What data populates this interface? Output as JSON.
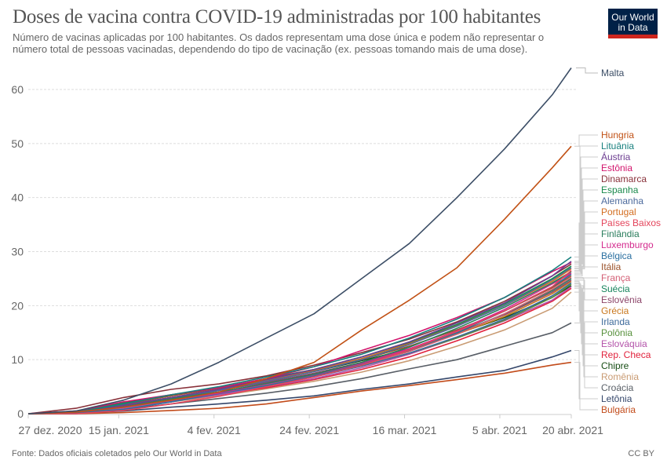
{
  "header": {
    "title": "Doses de vacina contra COVID-19 administradas por 100 habitantes",
    "subtitle": "Número de vacinas aplicadas por 100 habitantes. Os dados representam uma dose única e podem não representar o número total de pessoas vacinadas, dependendo do tipo de vacinação (ex. pessoas tomando mais de uma dose).",
    "logo_line1": "Our World",
    "logo_line2": "in Data"
  },
  "footer": {
    "source": "Fonte: Dados oficiais coletados pelo Our World in Data",
    "license": "CC BY"
  },
  "chart_data": {
    "type": "line",
    "title": "Doses de vacina contra COVID-19 administradas por 100 habitantes",
    "xlabel": "",
    "ylabel": "",
    "ylim": [
      0,
      64
    ],
    "yticks": [
      0,
      10,
      20,
      30,
      40,
      50,
      60
    ],
    "grid": true,
    "x_ticks": [
      {
        "day": 0,
        "label": "27 dez. 2020"
      },
      {
        "day": 19,
        "label": "15 jan. 2021"
      },
      {
        "day": 39,
        "label": "4 fev. 2021"
      },
      {
        "day": 59,
        "label": "24 fev. 2021"
      },
      {
        "day": 79,
        "label": "16 mar. 2021"
      },
      {
        "day": 99,
        "label": "5 abr. 2021"
      },
      {
        "day": 114,
        "label": "20 abr. 2021"
      }
    ],
    "x_unit": "days since 27 dez. 2020",
    "x": [
      0,
      10,
      20,
      30,
      40,
      50,
      60,
      70,
      80,
      90,
      100,
      110,
      114
    ],
    "legend_position": "right",
    "series": [
      {
        "name": "Malta",
        "color": "#3c4e66",
        "values": [
          0,
          0.5,
          2.5,
          5.5,
          9.5,
          14,
          18.5,
          25,
          31.5,
          40,
          49,
          59,
          64
        ]
      },
      {
        "name": "Hungria",
        "color": "#c15115",
        "values": [
          0,
          0.3,
          1.2,
          2.5,
          4,
          6.5,
          9.5,
          15.5,
          21,
          27,
          36,
          45.5,
          49.5
        ]
      },
      {
        "name": "Lituânia",
        "color": "#18807e",
        "values": [
          0,
          0.3,
          1.8,
          3.5,
          5,
          6.8,
          8.7,
          11,
          14,
          17.5,
          21.5,
          26.5,
          29
        ]
      },
      {
        "name": "Áustria",
        "color": "#6d3e91",
        "values": [
          0,
          0.3,
          1.5,
          3,
          4.5,
          6.3,
          8.2,
          10.5,
          13.3,
          16.8,
          20.5,
          25.5,
          28.2
        ]
      },
      {
        "name": "Estônia",
        "color": "#d2146c",
        "values": [
          0,
          0.5,
          2.2,
          3.5,
          4.8,
          6.5,
          8.7,
          11.7,
          14.5,
          17.8,
          21.5,
          26.3,
          28
        ]
      },
      {
        "name": "Dinamarca",
        "color": "#883039",
        "values": [
          0,
          1,
          3,
          4.5,
          5.5,
          7,
          9,
          11.3,
          13.8,
          17,
          20.8,
          25.5,
          27.7
        ]
      },
      {
        "name": "Espanha",
        "color": "#1a8a4c",
        "values": [
          0,
          0.5,
          2,
          3.5,
          4.8,
          6.5,
          8.2,
          10.5,
          13.2,
          16.5,
          20.3,
          25,
          27.3
        ]
      },
      {
        "name": "Alemanha",
        "color": "#4c6a9c",
        "values": [
          0,
          0.3,
          1.5,
          3,
          4.3,
          6,
          7.8,
          10,
          12.8,
          16.2,
          20,
          24.8,
          27
        ]
      },
      {
        "name": "Portugal",
        "color": "#d36d20",
        "values": [
          0,
          0.3,
          1.5,
          3,
          4.5,
          6.2,
          8,
          10.2,
          13,
          16.3,
          20,
          24.5,
          26.8
        ]
      },
      {
        "name": "Países Baixos",
        "color": "#e4445b",
        "values": [
          0,
          0,
          0.6,
          1.8,
          3.2,
          5,
          6.8,
          9,
          11.8,
          15.2,
          19,
          23.5,
          26.5
        ]
      },
      {
        "name": "Finlândia",
        "color": "#2a7d5c",
        "values": [
          0,
          0.3,
          1.3,
          2.8,
          4,
          5.6,
          7.3,
          9.5,
          12.3,
          15.8,
          19.7,
          24.2,
          26.3
        ]
      },
      {
        "name": "Luxemburgo",
        "color": "#d42b8e",
        "values": [
          0,
          0.3,
          1.2,
          2.5,
          3.8,
          5.5,
          7.2,
          9.3,
          12,
          15.3,
          19.3,
          24,
          26
        ]
      },
      {
        "name": "Bélgica",
        "color": "#2a6fa0",
        "values": [
          0,
          0.2,
          0.8,
          2.2,
          3.7,
          5.2,
          7,
          9.2,
          11.8,
          15,
          19,
          23.5,
          25.8
        ]
      },
      {
        "name": "Itália",
        "color": "#9a5129",
        "values": [
          0,
          0.3,
          1.8,
          3.3,
          4.7,
          6.3,
          8,
          10,
          12.5,
          15.5,
          19,
          23.3,
          25.5
        ]
      },
      {
        "name": "França",
        "color": "#d35f75",
        "values": [
          0,
          0.2,
          0.8,
          2.2,
          3.7,
          5.3,
          7,
          9,
          11.5,
          14.7,
          18.5,
          23,
          25.2
        ]
      },
      {
        "name": "Suécia",
        "color": "#17845d",
        "values": [
          0,
          0.3,
          1.3,
          2.8,
          4,
          5.5,
          7.2,
          9.2,
          11.7,
          14.8,
          18.5,
          22.8,
          25
        ]
      },
      {
        "name": "Eslovênia",
        "color": "#8c4569",
        "values": [
          0,
          0.4,
          1.6,
          3,
          4.3,
          5.8,
          7.5,
          9.5,
          12,
          15,
          18.3,
          22.5,
          24.7
        ]
      },
      {
        "name": "Grécia",
        "color": "#c9781e",
        "values": [
          0,
          0.3,
          1.5,
          3,
          4.3,
          5.8,
          7.3,
          9.3,
          11.7,
          14.7,
          18,
          22.2,
          24.5
        ]
      },
      {
        "name": "Irlanda",
        "color": "#3d6a9a",
        "values": [
          0,
          0.3,
          1.7,
          3,
          4,
          5.3,
          6.8,
          8.8,
          11.2,
          14.2,
          17.5,
          21.8,
          24.2
        ]
      },
      {
        "name": "Polônia",
        "color": "#58913d",
        "values": [
          0,
          0.2,
          1.2,
          2.7,
          3.8,
          5.3,
          6.9,
          8.8,
          11.2,
          14,
          17.3,
          21.5,
          24
        ]
      },
      {
        "name": "Eslováquia",
        "color": "#b353a9",
        "values": [
          0,
          0.2,
          1,
          2.3,
          3.5,
          5,
          6.5,
          8.5,
          11,
          14,
          17.2,
          21,
          23.5
        ]
      },
      {
        "name": "Rep. Checa",
        "color": "#e1223c",
        "values": [
          0,
          0.2,
          1,
          2.3,
          3.5,
          4.8,
          6.3,
          8.2,
          10.5,
          13.5,
          16.8,
          20.8,
          23.2
        ]
      },
      {
        "name": "Chipre",
        "color": "#174d15",
        "values": [
          0,
          0.3,
          1.3,
          2.8,
          4.3,
          6,
          7.8,
          9.8,
          12,
          14.8,
          17.8,
          21.5,
          23.7
        ]
      },
      {
        "name": "Romênia",
        "color": "#c99b73",
        "values": [
          0,
          0.2,
          1,
          2.2,
          3.3,
          4.6,
          6,
          7.7,
          9.8,
          12.5,
          15.5,
          19.5,
          22.5
        ]
      },
      {
        "name": "Croácia",
        "color": "#585e66",
        "values": [
          0,
          0.2,
          0.8,
          1.8,
          2.8,
          3.8,
          5,
          6.5,
          8.3,
          10,
          12.5,
          15,
          16.8
        ]
      },
      {
        "name": "Letônia",
        "color": "#34466a",
        "values": [
          0,
          0.1,
          0.5,
          1.2,
          1.8,
          2.5,
          3.3,
          4.5,
          5.5,
          6.8,
          8,
          10.5,
          11.7
        ]
      },
      {
        "name": "Bulgária",
        "color": "#c24b1a",
        "values": [
          0,
          0,
          0.2,
          0.6,
          1,
          1.8,
          3,
          4.2,
          5.2,
          6.3,
          7.5,
          9,
          9.5
        ]
      }
    ]
  }
}
